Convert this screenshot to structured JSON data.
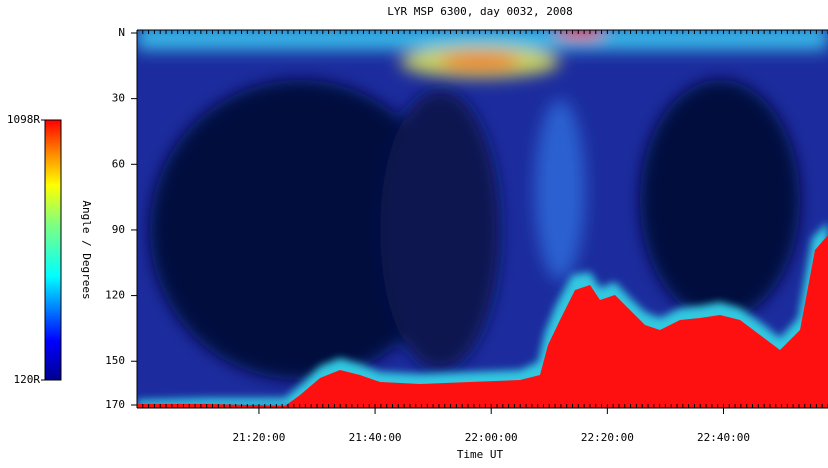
{
  "chart_data": {
    "type": "heatmap",
    "title": "LYR MSP 6300, day 0032, 2008",
    "xlabel": "Time UT",
    "ylabel": "Angle / Degrees",
    "xlim": [
      1259,
      1378
    ],
    "xticks": [
      {
        "value": 1280,
        "label": "21:20:00"
      },
      {
        "value": 1300,
        "label": "21:40:00"
      },
      {
        "value": 1320,
        "label": "22:00:00"
      },
      {
        "value": 1340,
        "label": "22:20:00"
      },
      {
        "value": 1360,
        "label": "22:40:00"
      }
    ],
    "ylim": [
      0,
      170
    ],
    "yticks": [
      {
        "value": 0,
        "label": "N"
      },
      30,
      60,
      90,
      120,
      150,
      170
    ],
    "colorbar": {
      "clim": [
        120,
        1098
      ],
      "ticks": [
        {
          "value": 1098,
          "label": "1098R"
        },
        {
          "value": 120,
          "label": "120R"
        }
      ]
    }
  }
}
